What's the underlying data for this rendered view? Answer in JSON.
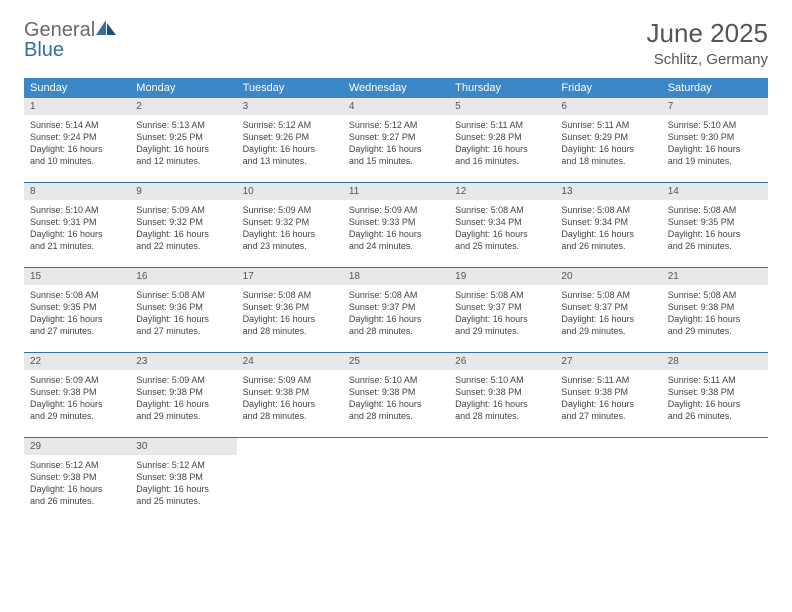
{
  "logo": {
    "text1": "General",
    "text2": "Blue"
  },
  "title": {
    "month": "June 2025",
    "location": "Schlitz, Germany"
  },
  "colors": {
    "header_bg": "#3b87c8",
    "header_text": "#ffffff",
    "daynum_bg": "#e8e8e8",
    "daynum_text": "#555555",
    "week_divider": "#3b6fa0",
    "body_text": "#444444",
    "logo_gray": "#6a6a6a",
    "logo_blue": "#2f6fa8"
  },
  "weekdays": [
    "Sunday",
    "Monday",
    "Tuesday",
    "Wednesday",
    "Thursday",
    "Friday",
    "Saturday"
  ],
  "days": [
    {
      "n": 1,
      "sunrise": "5:14 AM",
      "sunset": "9:24 PM",
      "dlh": 16,
      "dlm": 10
    },
    {
      "n": 2,
      "sunrise": "5:13 AM",
      "sunset": "9:25 PM",
      "dlh": 16,
      "dlm": 12
    },
    {
      "n": 3,
      "sunrise": "5:12 AM",
      "sunset": "9:26 PM",
      "dlh": 16,
      "dlm": 13
    },
    {
      "n": 4,
      "sunrise": "5:12 AM",
      "sunset": "9:27 PM",
      "dlh": 16,
      "dlm": 15
    },
    {
      "n": 5,
      "sunrise": "5:11 AM",
      "sunset": "9:28 PM",
      "dlh": 16,
      "dlm": 16
    },
    {
      "n": 6,
      "sunrise": "5:11 AM",
      "sunset": "9:29 PM",
      "dlh": 16,
      "dlm": 18
    },
    {
      "n": 7,
      "sunrise": "5:10 AM",
      "sunset": "9:30 PM",
      "dlh": 16,
      "dlm": 19
    },
    {
      "n": 8,
      "sunrise": "5:10 AM",
      "sunset": "9:31 PM",
      "dlh": 16,
      "dlm": 21
    },
    {
      "n": 9,
      "sunrise": "5:09 AM",
      "sunset": "9:32 PM",
      "dlh": 16,
      "dlm": 22
    },
    {
      "n": 10,
      "sunrise": "5:09 AM",
      "sunset": "9:32 PM",
      "dlh": 16,
      "dlm": 23
    },
    {
      "n": 11,
      "sunrise": "5:09 AM",
      "sunset": "9:33 PM",
      "dlh": 16,
      "dlm": 24
    },
    {
      "n": 12,
      "sunrise": "5:08 AM",
      "sunset": "9:34 PM",
      "dlh": 16,
      "dlm": 25
    },
    {
      "n": 13,
      "sunrise": "5:08 AM",
      "sunset": "9:34 PM",
      "dlh": 16,
      "dlm": 26
    },
    {
      "n": 14,
      "sunrise": "5:08 AM",
      "sunset": "9:35 PM",
      "dlh": 16,
      "dlm": 26
    },
    {
      "n": 15,
      "sunrise": "5:08 AM",
      "sunset": "9:35 PM",
      "dlh": 16,
      "dlm": 27
    },
    {
      "n": 16,
      "sunrise": "5:08 AM",
      "sunset": "9:36 PM",
      "dlh": 16,
      "dlm": 27
    },
    {
      "n": 17,
      "sunrise": "5:08 AM",
      "sunset": "9:36 PM",
      "dlh": 16,
      "dlm": 28
    },
    {
      "n": 18,
      "sunrise": "5:08 AM",
      "sunset": "9:37 PM",
      "dlh": 16,
      "dlm": 28
    },
    {
      "n": 19,
      "sunrise": "5:08 AM",
      "sunset": "9:37 PM",
      "dlh": 16,
      "dlm": 29
    },
    {
      "n": 20,
      "sunrise": "5:08 AM",
      "sunset": "9:37 PM",
      "dlh": 16,
      "dlm": 29
    },
    {
      "n": 21,
      "sunrise": "5:08 AM",
      "sunset": "9:38 PM",
      "dlh": 16,
      "dlm": 29
    },
    {
      "n": 22,
      "sunrise": "5:09 AM",
      "sunset": "9:38 PM",
      "dlh": 16,
      "dlm": 29
    },
    {
      "n": 23,
      "sunrise": "5:09 AM",
      "sunset": "9:38 PM",
      "dlh": 16,
      "dlm": 29
    },
    {
      "n": 24,
      "sunrise": "5:09 AM",
      "sunset": "9:38 PM",
      "dlh": 16,
      "dlm": 28
    },
    {
      "n": 25,
      "sunrise": "5:10 AM",
      "sunset": "9:38 PM",
      "dlh": 16,
      "dlm": 28
    },
    {
      "n": 26,
      "sunrise": "5:10 AM",
      "sunset": "9:38 PM",
      "dlh": 16,
      "dlm": 28
    },
    {
      "n": 27,
      "sunrise": "5:11 AM",
      "sunset": "9:38 PM",
      "dlh": 16,
      "dlm": 27
    },
    {
      "n": 28,
      "sunrise": "5:11 AM",
      "sunset": "9:38 PM",
      "dlh": 16,
      "dlm": 26
    },
    {
      "n": 29,
      "sunrise": "5:12 AM",
      "sunset": "9:38 PM",
      "dlh": 16,
      "dlm": 26
    },
    {
      "n": 30,
      "sunrise": "5:12 AM",
      "sunset": "9:38 PM",
      "dlh": 16,
      "dlm": 25
    }
  ],
  "labels": {
    "sunrise": "Sunrise:",
    "sunset": "Sunset:",
    "daylight_prefix": "Daylight:",
    "hours_word": "hours",
    "and_word": "and",
    "minutes_word": "minutes."
  },
  "layout": {
    "start_weekday_index": 0,
    "cols": 7
  }
}
